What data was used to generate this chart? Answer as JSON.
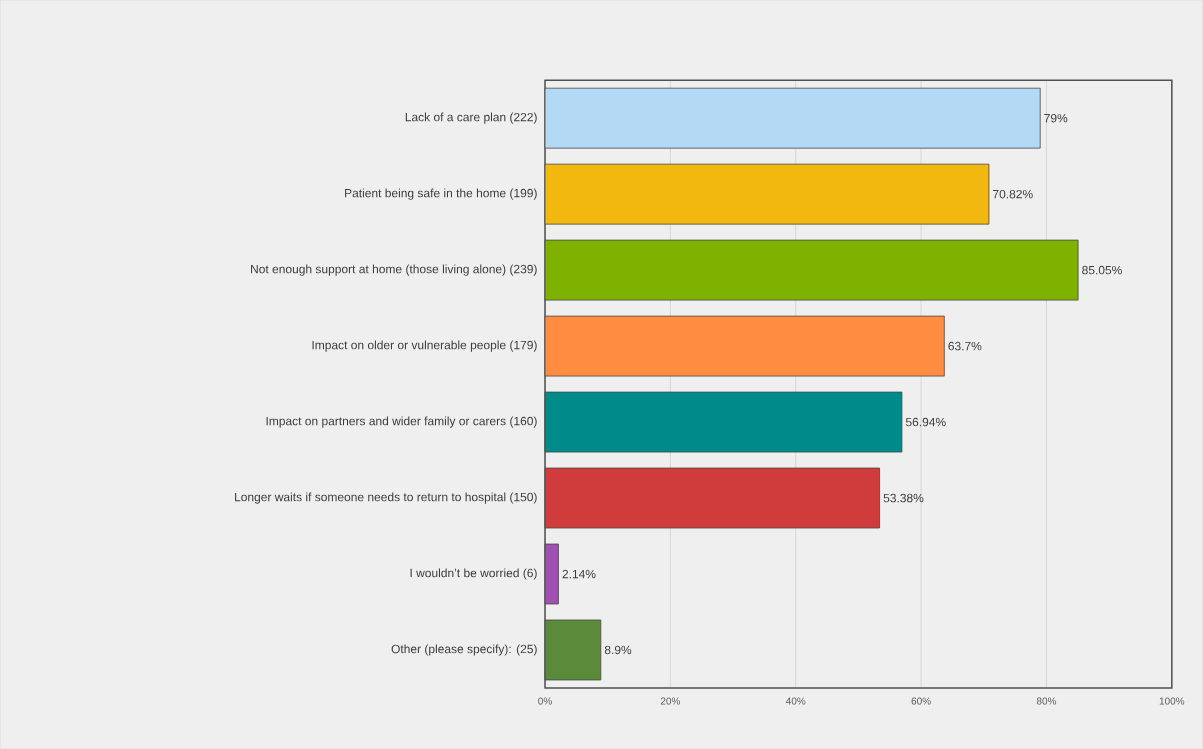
{
  "chart_data": {
    "type": "bar",
    "orientation": "horizontal",
    "categories": [
      "Lack of a care plan (222)",
      "Patient being safe in the home (199)",
      "Not enough support at home (those living alone) (239)",
      "Impact on older or vulnerable people (179)",
      "Impact on partners and wider family or carers (160)",
      "Longer waits if someone needs to return to hospital (150)",
      "I wouldn’t be worried (6)",
      "Other (please specify): (25)"
    ],
    "values": [
      79,
      70.82,
      85.05,
      63.7,
      56.94,
      53.38,
      2.14,
      8.9
    ],
    "value_labels": [
      "79%",
      "70.82%",
      "85.05%",
      "63.7%",
      "56.94%",
      "53.38%",
      "2.14%",
      "8.9%"
    ],
    "colors": [
      "#b3d9f5",
      "#f2b80f",
      "#7fb200",
      "#ff8c40",
      "#008b8b",
      "#d03c3c",
      "#a050b0",
      "#5a8a3a"
    ],
    "xlim": [
      0,
      100
    ],
    "xticks": [
      {
        "value": 0,
        "label": "0%"
      },
      {
        "value": 20,
        "label": "20%"
      },
      {
        "value": 40,
        "label": "40%"
      },
      {
        "value": 60,
        "label": "60%"
      },
      {
        "value": 80,
        "label": "80%"
      },
      {
        "value": 100,
        "label": "100%"
      }
    ],
    "grid": "x"
  }
}
